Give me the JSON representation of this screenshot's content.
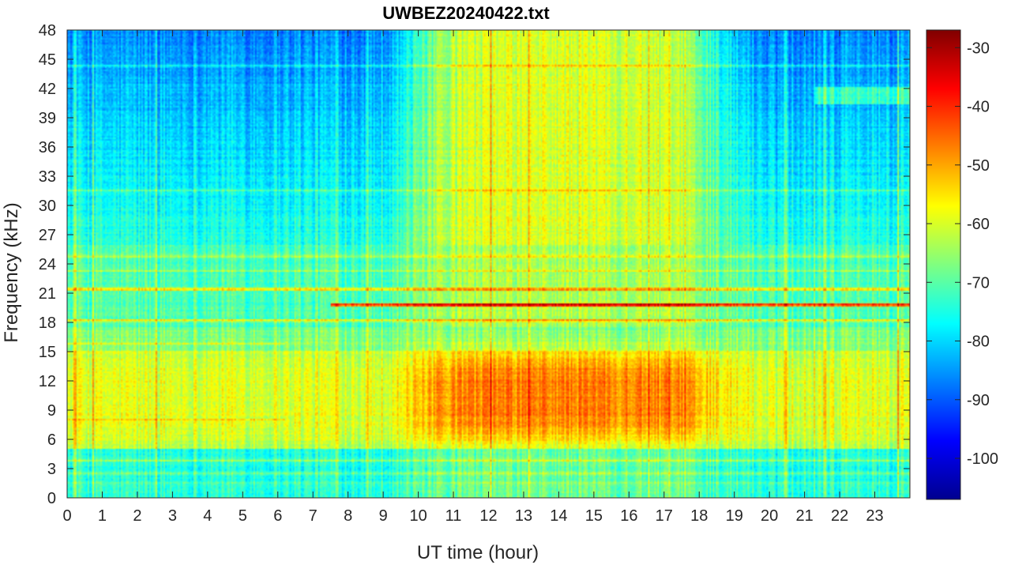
{
  "chart_data": {
    "type": "heatmap",
    "title": "UWBEZ20240422.txt",
    "xlabel": "UT time (hour)",
    "ylabel": "Frequency (kHz)",
    "xlim": [
      0,
      24
    ],
    "ylim": [
      0,
      48
    ],
    "x_ticks": [
      "0",
      "1",
      "2",
      "3",
      "4",
      "5",
      "6",
      "7",
      "8",
      "9",
      "10",
      "11",
      "12",
      "13",
      "14",
      "15",
      "16",
      "17",
      "18",
      "19",
      "20",
      "21",
      "22",
      "23"
    ],
    "y_ticks": [
      "0",
      "3",
      "6",
      "9",
      "12",
      "15",
      "18",
      "21",
      "24",
      "27",
      "30",
      "33",
      "36",
      "39",
      "42",
      "45",
      "48"
    ],
    "colorbar": {
      "colormap": "jet",
      "range": [
        -107,
        -27
      ],
      "ticks": [
        "-30",
        "-40",
        "-50",
        "-60",
        "-70",
        "-80",
        "-90",
        "-100"
      ]
    },
    "features": [
      {
        "desc": "strong narrowband transmitter",
        "freq_khz": 19.8,
        "t_start": 7.5,
        "t_end": 24,
        "level": -30
      },
      {
        "desc": "narrowband line",
        "freq_khz": 21.4,
        "t_start": 0,
        "t_end": 24,
        "level": -45
      },
      {
        "desc": "narrowband line",
        "freq_khz": 18.2,
        "t_start": 0,
        "t_end": 24,
        "level": -48
      },
      {
        "desc": "narrowband line",
        "freq_khz": 24.8,
        "t_start": 0,
        "t_end": 24,
        "level": -60
      },
      {
        "desc": "daytime broadband enhancement",
        "freq_min_khz": 5,
        "freq_max_khz": 17,
        "t_start": 9,
        "t_end": 19.5,
        "level": -50
      }
    ]
  }
}
